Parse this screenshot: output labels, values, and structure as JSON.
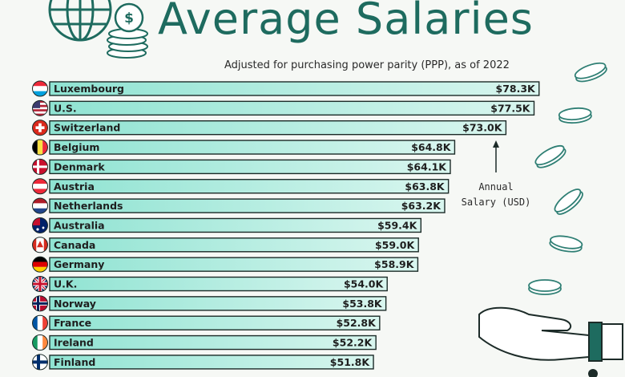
{
  "header": {
    "title": "Average Salaries",
    "subtitle": "Adjusted for purchasing power parity (PPP), as of 2022"
  },
  "annotation": {
    "line1": "Annual",
    "line2": "Salary (USD)"
  },
  "colors": {
    "accent": "#1e6b5f",
    "bar_fill_start": "#8fe3d2",
    "bar_fill_end": "#d9f6ef",
    "bar_stroke": "#1c2b28"
  },
  "chart_data": {
    "type": "bar",
    "orientation": "horizontal",
    "title": "Average Salaries",
    "subtitle": "Adjusted for purchasing power parity (PPP), as of 2022",
    "xlabel": "",
    "ylabel": "",
    "categories": [
      "Luxembourg",
      "U.S.",
      "Switzerland",
      "Belgium",
      "Denmark",
      "Austria",
      "Netherlands",
      "Australia",
      "Canada",
      "Germany",
      "U.K.",
      "Norway",
      "France",
      "Ireland",
      "Finland"
    ],
    "values": [
      78.3,
      77.5,
      73.0,
      64.8,
      64.1,
      63.8,
      63.2,
      59.4,
      59.0,
      58.9,
      54.0,
      53.8,
      52.8,
      52.2,
      51.8
    ],
    "value_labels": [
      "$78.3K",
      "$77.5K",
      "$73.0K",
      "$64.8K",
      "$64.1K",
      "$63.8K",
      "$63.2K",
      "$59.4K",
      "$59.0K",
      "$58.9K",
      "$54.0K",
      "$53.8K",
      "$52.8K",
      "$52.2K",
      "$51.8K"
    ],
    "unit": "thousand USD",
    "flags": [
      "luxembourg-flag-icon",
      "us-flag-icon",
      "switzerland-flag-icon",
      "belgium-flag-icon",
      "denmark-flag-icon",
      "austria-flag-icon",
      "netherlands-flag-icon",
      "australia-flag-icon",
      "canada-flag-icon",
      "germany-flag-icon",
      "uk-flag-icon",
      "norway-flag-icon",
      "france-flag-icon",
      "ireland-flag-icon",
      "finland-flag-icon"
    ],
    "grid": false
  }
}
